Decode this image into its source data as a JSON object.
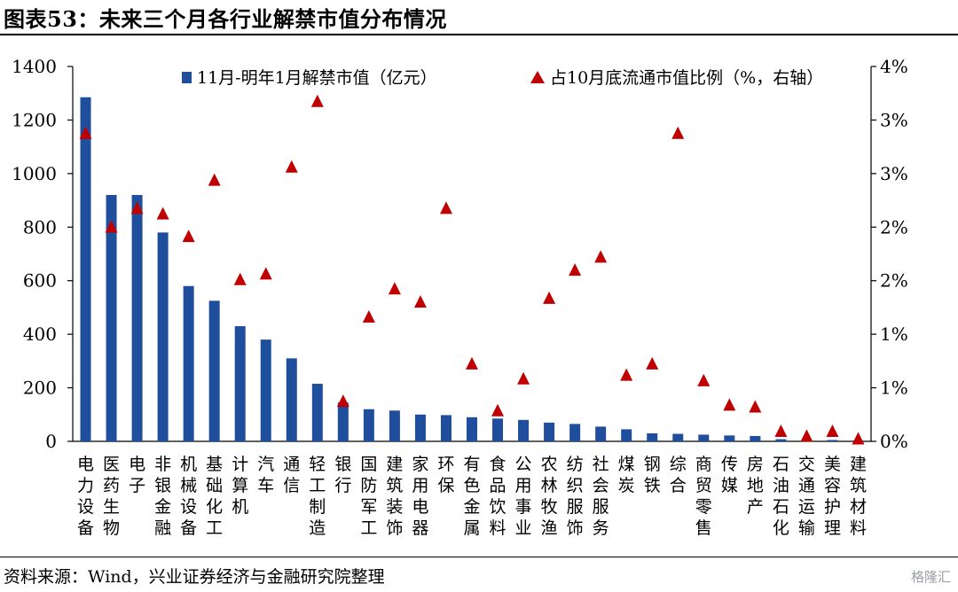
{
  "title": "图表53：未来三个月各行业解禁市值分布情况",
  "source": "资料来源：Wind，兴业证券经济与金融研究院整理",
  "watermark": "格隆汇",
  "chart_data": {
    "type": "bar",
    "categories": [
      "电力设备",
      "医药生物",
      "电子",
      "非银金融",
      "机械设备",
      "基础化工",
      "计算机",
      "汽车",
      "通信",
      "轻工制造",
      "银行",
      "国防军工",
      "建筑装饰",
      "家用电器",
      "环保",
      "有色金属",
      "食品饮料",
      "公用事业",
      "农林牧渔",
      "纺织服饰",
      "社会服务",
      "煤炭",
      "钢铁",
      "综合",
      "商贸零售",
      "传媒",
      "房地产",
      "石油石化",
      "交通运输",
      "美容护理",
      "建筑材料"
    ],
    "series": [
      {
        "name": "11月-明年1月解禁市值（亿元）",
        "type": "bar",
        "axis": "left",
        "color": "#1f4e9c",
        "values": [
          1285,
          920,
          920,
          780,
          580,
          525,
          430,
          380,
          310,
          215,
          145,
          120,
          115,
          100,
          98,
          90,
          85,
          80,
          70,
          65,
          55,
          45,
          30,
          28,
          25,
          22,
          20,
          8,
          6,
          5,
          3
        ]
      },
      {
        "name": "占10月底流通市值比例（%，右轴）",
        "type": "scatter",
        "axis": "right",
        "color": "#c00000",
        "values": [
          3.28,
          2.28,
          2.48,
          2.42,
          2.18,
          2.78,
          1.72,
          1.78,
          2.92,
          3.62,
          0.42,
          1.32,
          1.62,
          1.48,
          2.48,
          0.82,
          0.32,
          0.66,
          1.52,
          1.82,
          1.96,
          0.7,
          0.82,
          3.28,
          0.64,
          0.38,
          0.36,
          0.1,
          0.05,
          0.1,
          0.02
        ]
      }
    ],
    "y_left": {
      "min": 0,
      "max": 1400,
      "ticks": [
        "0",
        "200",
        "400",
        "600",
        "800",
        "1000",
        "1200",
        "1400"
      ]
    },
    "y_right": {
      "min": 0,
      "max": 4,
      "ticks": [
        "0%",
        "1%",
        "1%",
        "2%",
        "2%",
        "3%",
        "3%",
        "4%"
      ]
    },
    "grid": false,
    "legend_position": "top"
  }
}
